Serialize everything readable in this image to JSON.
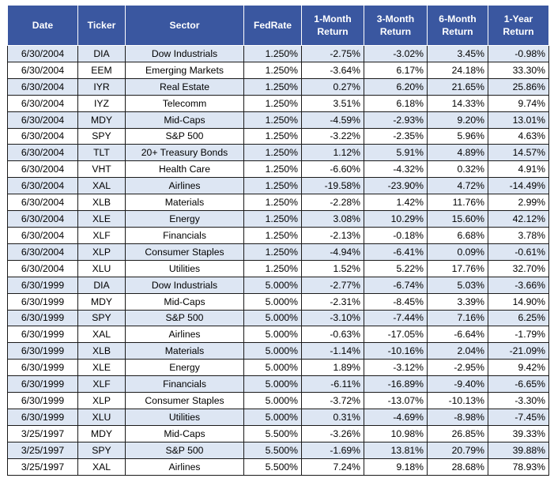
{
  "table": {
    "headers": [
      "Date",
      "Ticker",
      "Sector",
      "FedRate",
      "1-Month\nReturn",
      "3-Month\nReturn",
      "6-Month\nReturn",
      "1-Year\nReturn"
    ],
    "rows": [
      [
        "6/30/2004",
        "DIA",
        "Dow Industrials",
        "1.250%",
        "-2.75%",
        "-3.02%",
        "3.45%",
        "-0.98%"
      ],
      [
        "6/30/2004",
        "EEM",
        "Emerging Markets",
        "1.250%",
        "-3.64%",
        "6.17%",
        "24.18%",
        "33.30%"
      ],
      [
        "6/30/2004",
        "IYR",
        "Real Estate",
        "1.250%",
        "0.27%",
        "6.20%",
        "21.65%",
        "25.86%"
      ],
      [
        "6/30/2004",
        "IYZ",
        "Telecomm",
        "1.250%",
        "3.51%",
        "6.18%",
        "14.33%",
        "9.74%"
      ],
      [
        "6/30/2004",
        "MDY",
        "Mid-Caps",
        "1.250%",
        "-4.59%",
        "-2.93%",
        "9.20%",
        "13.01%"
      ],
      [
        "6/30/2004",
        "SPY",
        "S&P 500",
        "1.250%",
        "-3.22%",
        "-2.35%",
        "5.96%",
        "4.63%"
      ],
      [
        "6/30/2004",
        "TLT",
        "20+ Treasury Bonds",
        "1.250%",
        "1.12%",
        "5.91%",
        "4.89%",
        "14.57%"
      ],
      [
        "6/30/2004",
        "VHT",
        "Health Care",
        "1.250%",
        "-6.60%",
        "-4.32%",
        "0.32%",
        "4.91%"
      ],
      [
        "6/30/2004",
        "XAL",
        "Airlines",
        "1.250%",
        "-19.58%",
        "-23.90%",
        "4.72%",
        "-14.49%"
      ],
      [
        "6/30/2004",
        "XLB",
        "Materials",
        "1.250%",
        "-2.28%",
        "1.42%",
        "11.76%",
        "2.99%"
      ],
      [
        "6/30/2004",
        "XLE",
        "Energy",
        "1.250%",
        "3.08%",
        "10.29%",
        "15.60%",
        "42.12%"
      ],
      [
        "6/30/2004",
        "XLF",
        "Financials",
        "1.250%",
        "-2.13%",
        "-0.18%",
        "6.68%",
        "3.78%"
      ],
      [
        "6/30/2004",
        "XLP",
        "Consumer Staples",
        "1.250%",
        "-4.94%",
        "-6.41%",
        "0.09%",
        "-0.61%"
      ],
      [
        "6/30/2004",
        "XLU",
        "Utilities",
        "1.250%",
        "1.52%",
        "5.22%",
        "17.76%",
        "32.70%"
      ],
      [
        "6/30/1999",
        "DIA",
        "Dow Industrials",
        "5.000%",
        "-2.77%",
        "-6.74%",
        "5.03%",
        "-3.66%"
      ],
      [
        "6/30/1999",
        "MDY",
        "Mid-Caps",
        "5.000%",
        "-2.31%",
        "-8.45%",
        "3.39%",
        "14.90%"
      ],
      [
        "6/30/1999",
        "SPY",
        "S&P 500",
        "5.000%",
        "-3.10%",
        "-7.44%",
        "7.16%",
        "6.25%"
      ],
      [
        "6/30/1999",
        "XAL",
        "Airlines",
        "5.000%",
        "-0.63%",
        "-17.05%",
        "-6.64%",
        "-1.79%"
      ],
      [
        "6/30/1999",
        "XLB",
        "Materials",
        "5.000%",
        "-1.14%",
        "-10.16%",
        "2.04%",
        "-21.09%"
      ],
      [
        "6/30/1999",
        "XLE",
        "Energy",
        "5.000%",
        "1.89%",
        "-3.12%",
        "-2.95%",
        "9.42%"
      ],
      [
        "6/30/1999",
        "XLF",
        "Financials",
        "5.000%",
        "-6.11%",
        "-16.89%",
        "-9.40%",
        "-6.65%"
      ],
      [
        "6/30/1999",
        "XLP",
        "Consumer Staples",
        "5.000%",
        "-3.72%",
        "-13.07%",
        "-10.13%",
        "-3.30%"
      ],
      [
        "6/30/1999",
        "XLU",
        "Utilities",
        "5.000%",
        "0.31%",
        "-4.69%",
        "-8.98%",
        "-7.45%"
      ],
      [
        "3/25/1997",
        "MDY",
        "Mid-Caps",
        "5.500%",
        "-3.26%",
        "10.98%",
        "26.85%",
        "39.33%"
      ],
      [
        "3/25/1997",
        "SPY",
        "S&P 500",
        "5.500%",
        "-1.69%",
        "13.81%",
        "20.79%",
        "39.88%"
      ],
      [
        "3/25/1997",
        "XAL",
        "Airlines",
        "5.500%",
        "7.24%",
        "9.18%",
        "28.68%",
        "78.93%"
      ]
    ]
  },
  "colors": {
    "header_bg": "#3a57a0",
    "header_text": "#ffffff",
    "stripe_bg": "#dde6f3",
    "border": "#1a1a1a"
  }
}
